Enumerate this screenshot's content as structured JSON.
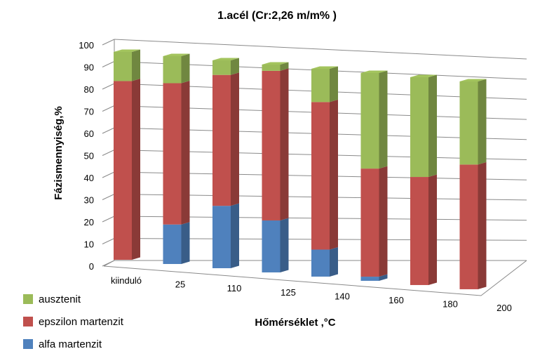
{
  "chart_data": {
    "type": "bar",
    "stacked": true,
    "three_d": true,
    "title": "1.acél (Cr:2,26 m/m% )",
    "xlabel": "Hőmérséklet ,°C",
    "ylabel": "Fázismennyiség,%",
    "ylim": [
      0,
      100
    ],
    "yticks": [
      "0",
      "10",
      "20",
      "30",
      "40",
      "50",
      "60",
      "70",
      "80",
      "90",
      "100"
    ],
    "categories": [
      "kiinduló",
      "25",
      "110",
      "125",
      "140",
      "160",
      "180",
      "200"
    ],
    "grid": true,
    "legend_position": "bottom-left",
    "series": [
      {
        "name": "alfa martenzit",
        "color": "#4f81bd",
        "values": [
          0,
          19,
          30,
          25,
          13,
          2,
          0,
          0
        ]
      },
      {
        "name": "epszilon martenzit",
        "color": "#c0504d",
        "values": [
          86,
          68,
          63,
          72,
          71,
          52,
          52,
          60
        ]
      },
      {
        "name": "ausztenit",
        "color": "#9bbb59",
        "values": [
          14,
          13,
          7,
          3,
          16,
          46,
          48,
          40
        ]
      }
    ]
  }
}
